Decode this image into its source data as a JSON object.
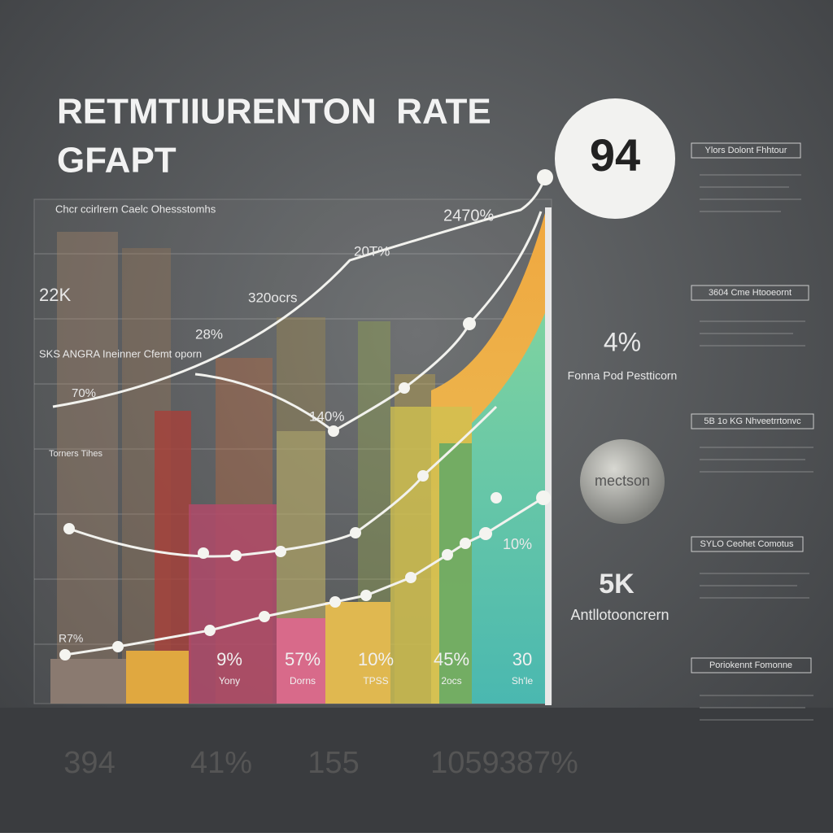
{
  "header": {
    "title_line1": "RETMTIIURENTON  RATE",
    "title_line2": "GFAPT"
  },
  "badge": "94",
  "chart": {
    "caption": "Chcr ccirlrern Caelc Ohessstomhs",
    "labels": [
      "2470%",
      "20T%",
      "22K",
      "320ocrs",
      "28%",
      "SKS ANGRA Ineinner Cfemt oporn",
      "70%",
      "140%",
      "Torners Tihes",
      "R7%",
      "10%"
    ],
    "bottom": [
      {
        "value": "9%",
        "label": "Yony"
      },
      {
        "value": "57%",
        "label": "Dorns"
      },
      {
        "value": "10%",
        "label": "TPSS"
      },
      {
        "value": "45%",
        "label": "2ocs"
      },
      {
        "value": "30",
        "label": "Sh'le"
      }
    ]
  },
  "sidebar": {
    "tags": [
      "Ylors Dolont Fhhtour",
      "3604 Cme Htooeornt",
      "5B 1o KG Nhveetrrtonvc",
      "SYLO Ceohet Comotus",
      "Poriokennt Fomonne"
    ],
    "stat1": {
      "value": "4%",
      "label": "Fonna Pod Pestticorn"
    },
    "circle": "mectson",
    "stat2": {
      "value": "5K",
      "label": "Antllotooncrern"
    }
  },
  "footer": [
    "394",
    "41%",
    "155",
    "1059387%"
  ]
}
